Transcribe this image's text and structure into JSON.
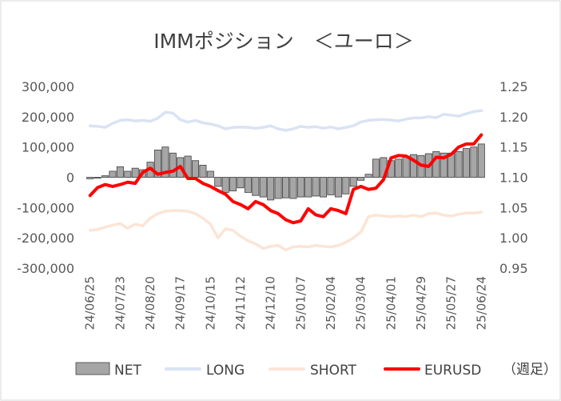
{
  "chart_data": {
    "type": "bar",
    "title": "IMMポジション　＜ユーロ＞",
    "note": "（週足）",
    "x_tick_labels": [
      "24/06/25",
      "24/07/23",
      "24/08/20",
      "24/09/17",
      "24/10/15",
      "24/11/12",
      "24/12/10",
      "25/01/07",
      "25/02/04",
      "25/03/04",
      "25/04/01",
      "25/04/29",
      "25/05/27",
      "25/06/24"
    ],
    "y_left": {
      "ticks": [
        "300,000",
        "200,000",
        "100,000",
        "0",
        "-100,000",
        "-200,000",
        "-300,000"
      ],
      "ylim": [
        -300000,
        300000
      ]
    },
    "y_right": {
      "ticks": [
        "1.25",
        "1.20",
        "1.15",
        "1.10",
        "1.05",
        "1.00",
        "0.95"
      ],
      "ylim": [
        0.95,
        1.25
      ]
    },
    "legend": [
      "NET",
      "LONG",
      "SHORT",
      "EURUSD"
    ],
    "legend_position": "bottom",
    "colors": {
      "NET": "#a6a6a6",
      "LONG": "#dae3f3",
      "SHORT": "#fbe5d6",
      "EURUSD": "#ff0000"
    },
    "series": [
      {
        "name": "NET",
        "type": "bar",
        "axis": "left",
        "values": [
          -5000,
          -3000,
          5000,
          20000,
          35000,
          20000,
          30000,
          25000,
          50000,
          90000,
          100000,
          80000,
          65000,
          70000,
          55000,
          40000,
          20000,
          -30000,
          -50000,
          -45000,
          -35000,
          -50000,
          -60000,
          -65000,
          -75000,
          -70000,
          -68000,
          -70000,
          -65000,
          -65000,
          -62000,
          -65000,
          -58000,
          -65000,
          -55000,
          -30000,
          -10000,
          10000,
          60000,
          65000,
          55000,
          60000,
          70000,
          75000,
          72000,
          78000,
          85000,
          80000,
          80000,
          85000,
          95000,
          100000,
          110000
        ]
      },
      {
        "name": "LONG",
        "type": "line",
        "axis": "left",
        "values": [
          170000,
          168000,
          165000,
          178000,
          188000,
          190000,
          186000,
          188000,
          185000,
          195000,
          215000,
          212000,
          190000,
          182000,
          188000,
          180000,
          176000,
          170000,
          160000,
          165000,
          166000,
          165000,
          162000,
          165000,
          170000,
          160000,
          155000,
          160000,
          168000,
          165000,
          167000,
          162000,
          166000,
          160000,
          165000,
          170000,
          183000,
          188000,
          190000,
          191000,
          189000,
          186000,
          192000,
          196000,
          196000,
          200000,
          197000,
          208000,
          205000,
          202000,
          210000,
          217000,
          220000
        ]
      },
      {
        "name": "SHORT",
        "type": "line",
        "axis": "left",
        "values": [
          -175000,
          -172000,
          -165000,
          -158000,
          -153000,
          -168000,
          -155000,
          -160000,
          -135000,
          -120000,
          -112000,
          -110000,
          -110000,
          -112000,
          -120000,
          -135000,
          -155000,
          -200000,
          -170000,
          -175000,
          -195000,
          -210000,
          -220000,
          -235000,
          -228000,
          -225000,
          -240000,
          -230000,
          -228000,
          -230000,
          -225000,
          -228000,
          -230000,
          -225000,
          -215000,
          -200000,
          -180000,
          -130000,
          -125000,
          -128000,
          -130000,
          -128000,
          -130000,
          -125000,
          -130000,
          -120000,
          -118000,
          -125000,
          -128000,
          -122000,
          -118000,
          -118000,
          -115000
        ]
      },
      {
        "name": "EURUSD",
        "type": "line",
        "axis": "right",
        "values": [
          1.07,
          1.083,
          1.088,
          1.085,
          1.088,
          1.092,
          1.09,
          1.108,
          1.115,
          1.105,
          1.108,
          1.11,
          1.118,
          1.098,
          1.098,
          1.09,
          1.085,
          1.078,
          1.072,
          1.06,
          1.055,
          1.048,
          1.06,
          1.055,
          1.045,
          1.04,
          1.03,
          1.025,
          1.028,
          1.048,
          1.038,
          1.035,
          1.048,
          1.045,
          1.04,
          1.08,
          1.085,
          1.08,
          1.082,
          1.096,
          1.132,
          1.136,
          1.135,
          1.128,
          1.12,
          1.118,
          1.133,
          1.132,
          1.138,
          1.15,
          1.155,
          1.155,
          1.17
        ]
      }
    ]
  }
}
